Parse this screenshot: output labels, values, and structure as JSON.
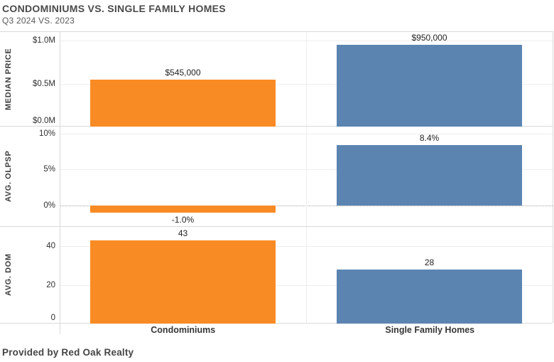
{
  "footer": {
    "credit": "Provided by Red Oak Realty"
  },
  "colors": {
    "condominiums_bar": "#F98B25",
    "single_family_bar": "#5B84B1",
    "grid": "#EDEDED",
    "border": "#D9D9D9"
  },
  "chart_data": {
    "type": "bar",
    "title": "CONDOMINIUMS VS. SINGLE FAMILY HOMES",
    "subtitle": "Q3 2024 VS. 2023",
    "categories": [
      "Condominiums",
      "Single Family Homes"
    ],
    "bar_colors": [
      "#F98B25",
      "#5B84B1"
    ],
    "legend": "none",
    "grid": "on",
    "xlabel": "",
    "panels": [
      {
        "metric": "MEDIAN PRICE",
        "values": [
          545000,
          950000
        ],
        "labels": [
          "$545,000",
          "$950,000"
        ],
        "ticks": [
          {
            "value": 0,
            "label": "$0.0M"
          },
          {
            "value": 500000,
            "label": "$0.5M"
          },
          {
            "value": 1000000,
            "label": "$1.0M"
          }
        ],
        "ylim": [
          0,
          1100000
        ]
      },
      {
        "metric": "AVG. OLPSP",
        "values": [
          -1.0,
          8.4
        ],
        "labels": [
          "-1.0%",
          "8.4%"
        ],
        "ticks": [
          {
            "value": 0,
            "label": "0%"
          },
          {
            "value": 5,
            "label": "5%"
          },
          {
            "value": 10,
            "label": "10%"
          }
        ],
        "ylim": [
          -3,
          11
        ],
        "zero_line": "dotted"
      },
      {
        "metric": "AVG. DOM",
        "values": [
          43,
          28
        ],
        "labels": [
          "43",
          "28"
        ],
        "ticks": [
          {
            "value": 0,
            "label": "0"
          },
          {
            "value": 20,
            "label": "20"
          },
          {
            "value": 40,
            "label": "40"
          }
        ],
        "ylim": [
          0,
          50
        ]
      }
    ]
  }
}
